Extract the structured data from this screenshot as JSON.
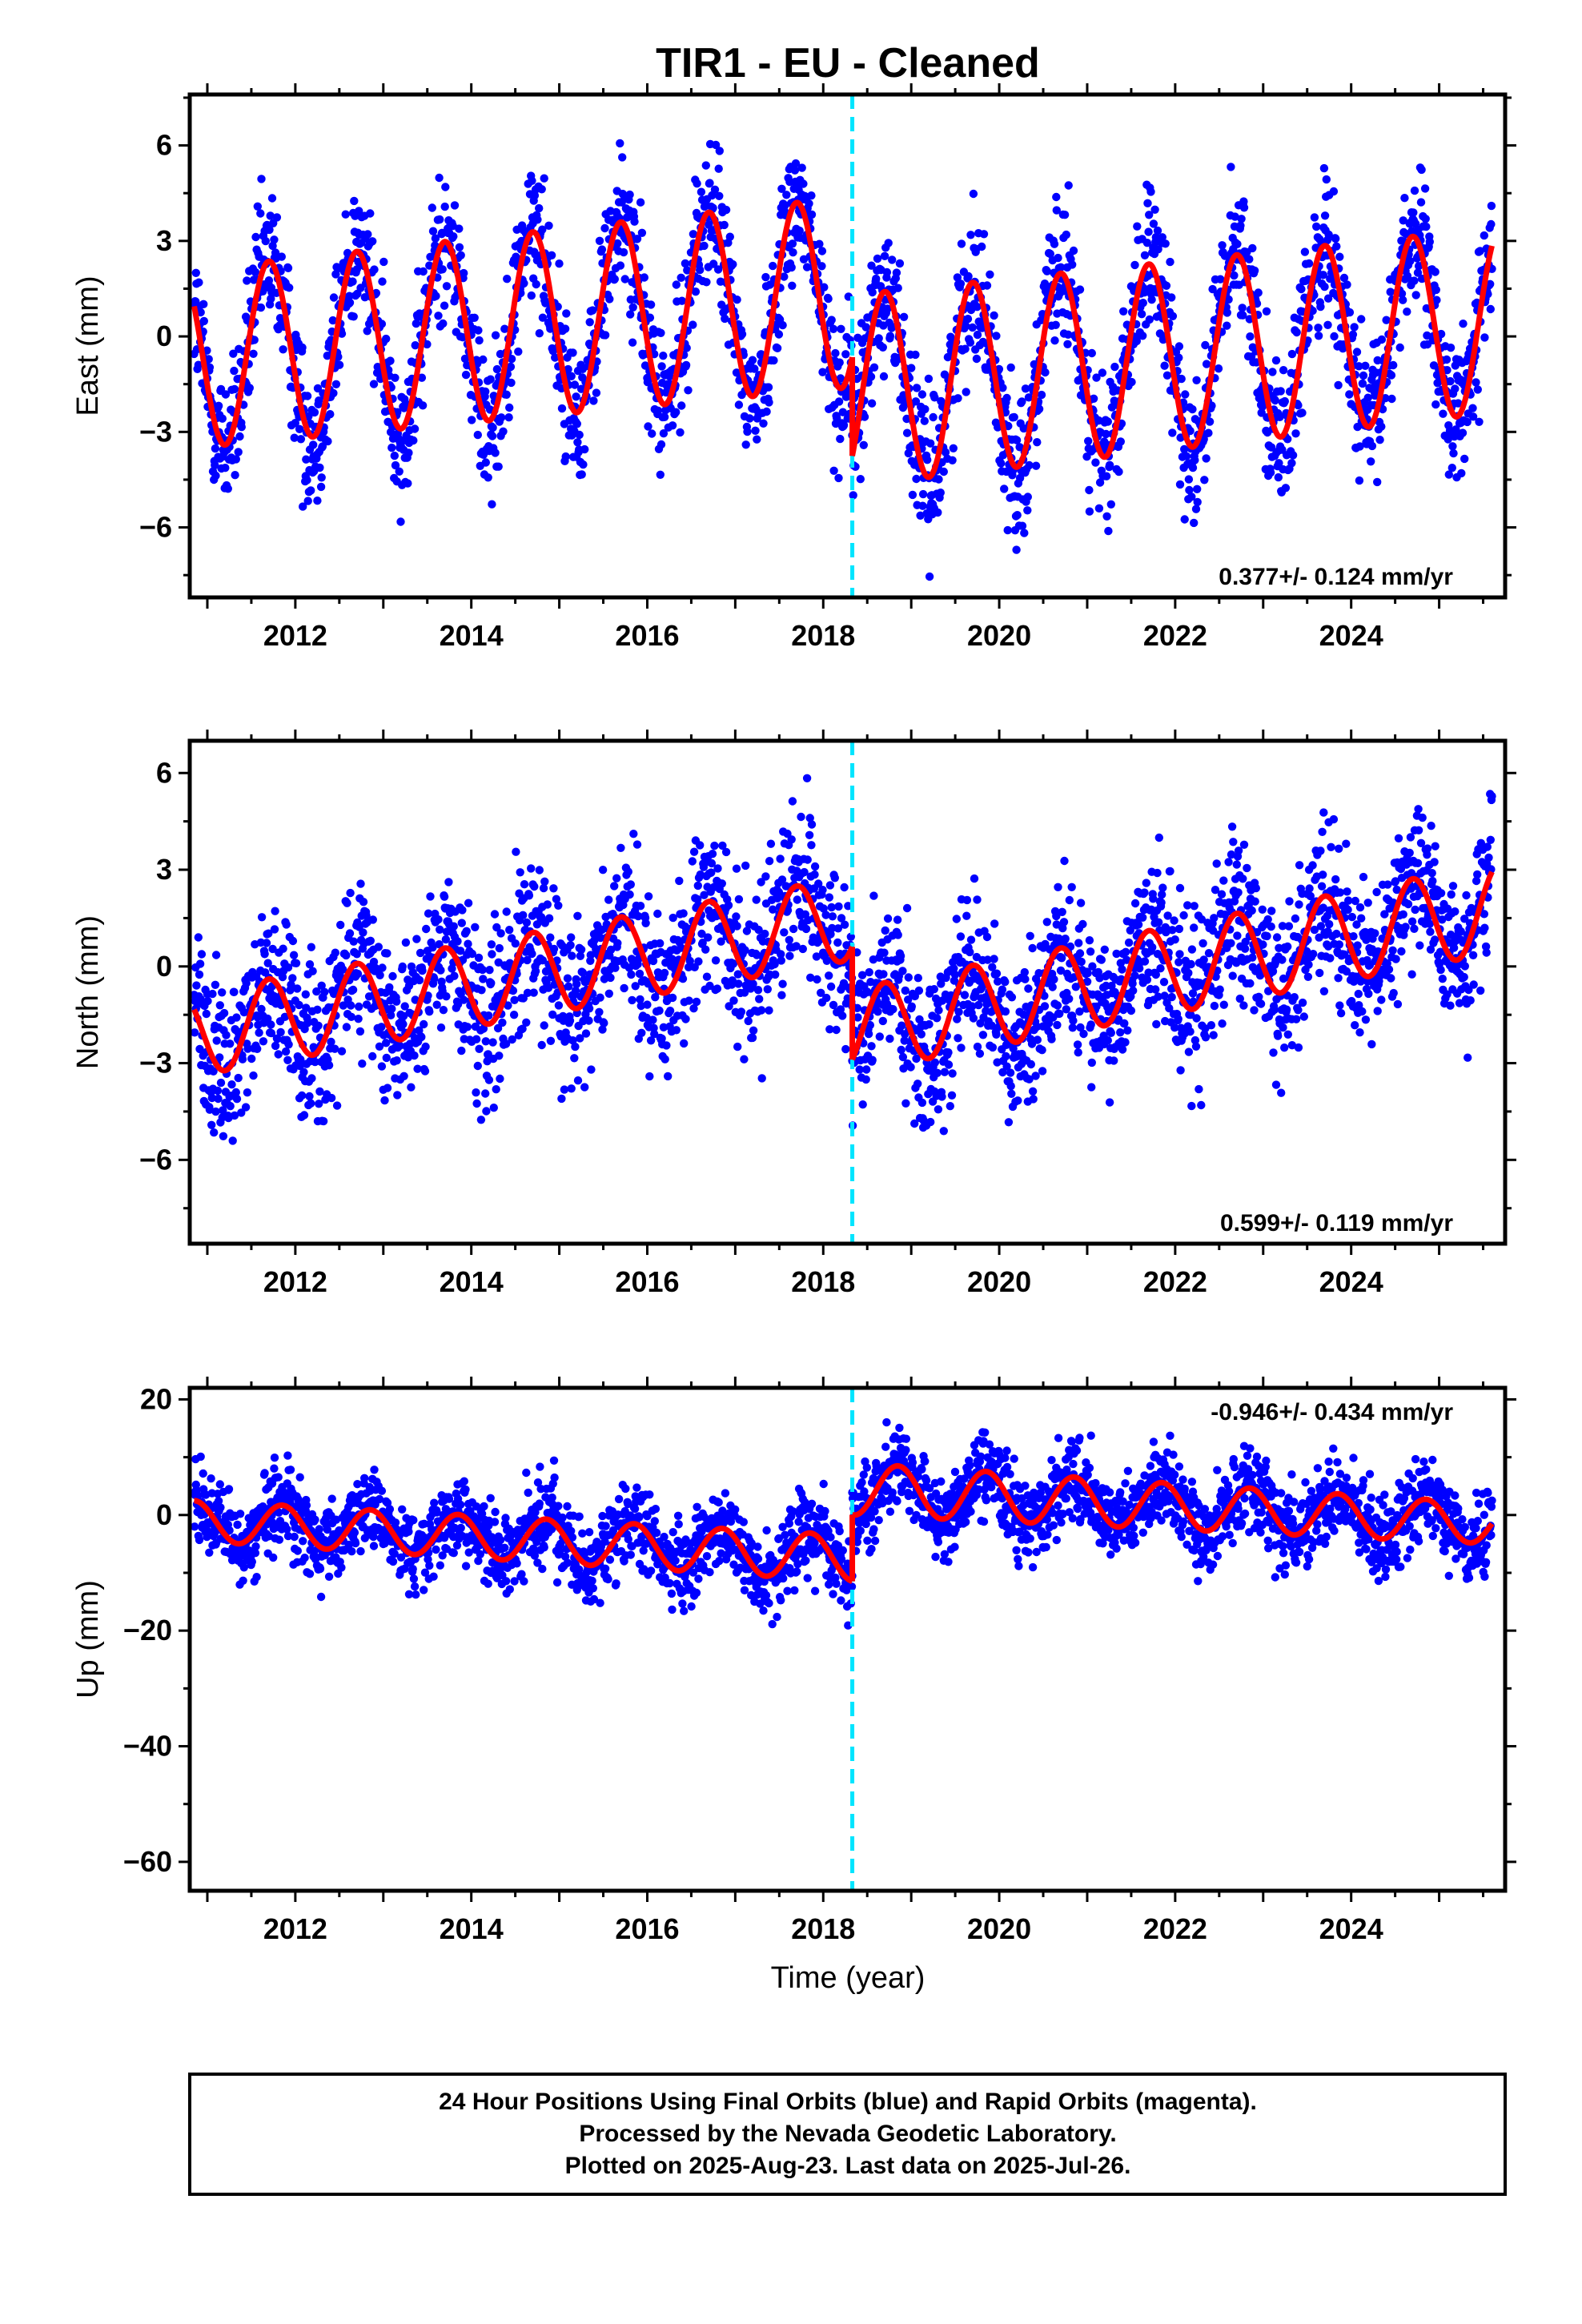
{
  "title": "TIR1  - EU - Cleaned",
  "xlabel": "Time (year)",
  "footer": {
    "line1": "24 Hour Positions Using Final Orbits (blue) and Rapid Orbits (magenta).",
    "line2": "Processed by the Nevada Geodetic Laboratory.",
    "line3": "Plotted on 2025-Aug-23. Last data on 2025-Jul-26."
  },
  "colors": {
    "points": "#0000ff",
    "model": "#ff0000",
    "event": "#00e5ff",
    "frame": "#000000"
  },
  "chart_data": [
    {
      "type": "scatter",
      "ylabel": "East (mm)",
      "rate_text": "0.377+/- 0.124 mm/yr",
      "xlim": [
        2010.8,
        2025.75
      ],
      "ylim": [
        -8.2,
        7.6
      ],
      "xticks": [
        2012,
        2014,
        2016,
        2018,
        2020,
        2022,
        2024
      ],
      "yticks": [
        -6,
        -3,
        0,
        3,
        6
      ],
      "yminor_step": 1.5,
      "event_x": 2018.33,
      "model": {
        "pre": {
          "x_range": [
            2010.85,
            2018.33
          ],
          "amplitude": [
            2.8,
            3.0
          ],
          "offset": [
            -0.7,
            1.4
          ],
          "phase_year": 0.45
        },
        "post": {
          "x_range": [
            2018.33,
            2025.6
          ],
          "amplitude": [
            3.0,
            2.9
          ],
          "offset": [
            -1.7,
            0.5
          ],
          "phase_year": 0.45
        }
      },
      "scatter_sigma": 1.1
    },
    {
      "type": "scatter",
      "ylabel": "North (mm)",
      "rate_text": "0.599+/- 0.119 mm/yr",
      "xlim": [
        2010.8,
        2025.75
      ],
      "ylim": [
        -8.6,
        7.0
      ],
      "xticks": [
        2012,
        2014,
        2016,
        2018,
        2020,
        2022,
        2024
      ],
      "yticks": [
        -6,
        -3,
        0,
        3,
        6
      ],
      "yminor_step": 1.5,
      "event_x": 2018.33,
      "model": {
        "pre": {
          "x_range": [
            2010.85,
            2018.33
          ],
          "amplitude": [
            1.3,
            1.3
          ],
          "offset": [
            -2.1,
            1.5
          ],
          "phase_year": 0.45
        },
        "post": {
          "x_range": [
            2018.33,
            2025.6
          ],
          "amplitude": [
            1.3,
            1.4
          ],
          "offset": [
            -2.0,
            1.8
          ],
          "phase_year": 0.45
        }
      },
      "scatter_sigma": 1.2
    },
    {
      "type": "scatter",
      "ylabel": "Up (mm)",
      "rate_text": "-0.946+/- 0.434 mm/yr",
      "xlim": [
        2010.8,
        2025.75
      ],
      "ylim": [
        -65,
        22
      ],
      "xticks": [
        2012,
        2014,
        2016,
        2018,
        2020,
        2022,
        2024
      ],
      "yticks": [
        -60,
        -40,
        -20,
        0,
        20
      ],
      "yminor_step": 10,
      "event_x": 2018.33,
      "model": {
        "pre": {
          "x_range": [
            2010.85,
            2018.33
          ],
          "amplitude": [
            3.5,
            4.0
          ],
          "offset": [
            -1.0,
            -7.5
          ],
          "phase_year": 0.6
        },
        "post": {
          "x_range": [
            2018.33,
            2025.6
          ],
          "amplitude": [
            4.5,
            3.5
          ],
          "offset": [
            4.5,
            -1.5
          ],
          "phase_year": 0.6
        }
      },
      "scatter_sigma": 3.6
    }
  ]
}
